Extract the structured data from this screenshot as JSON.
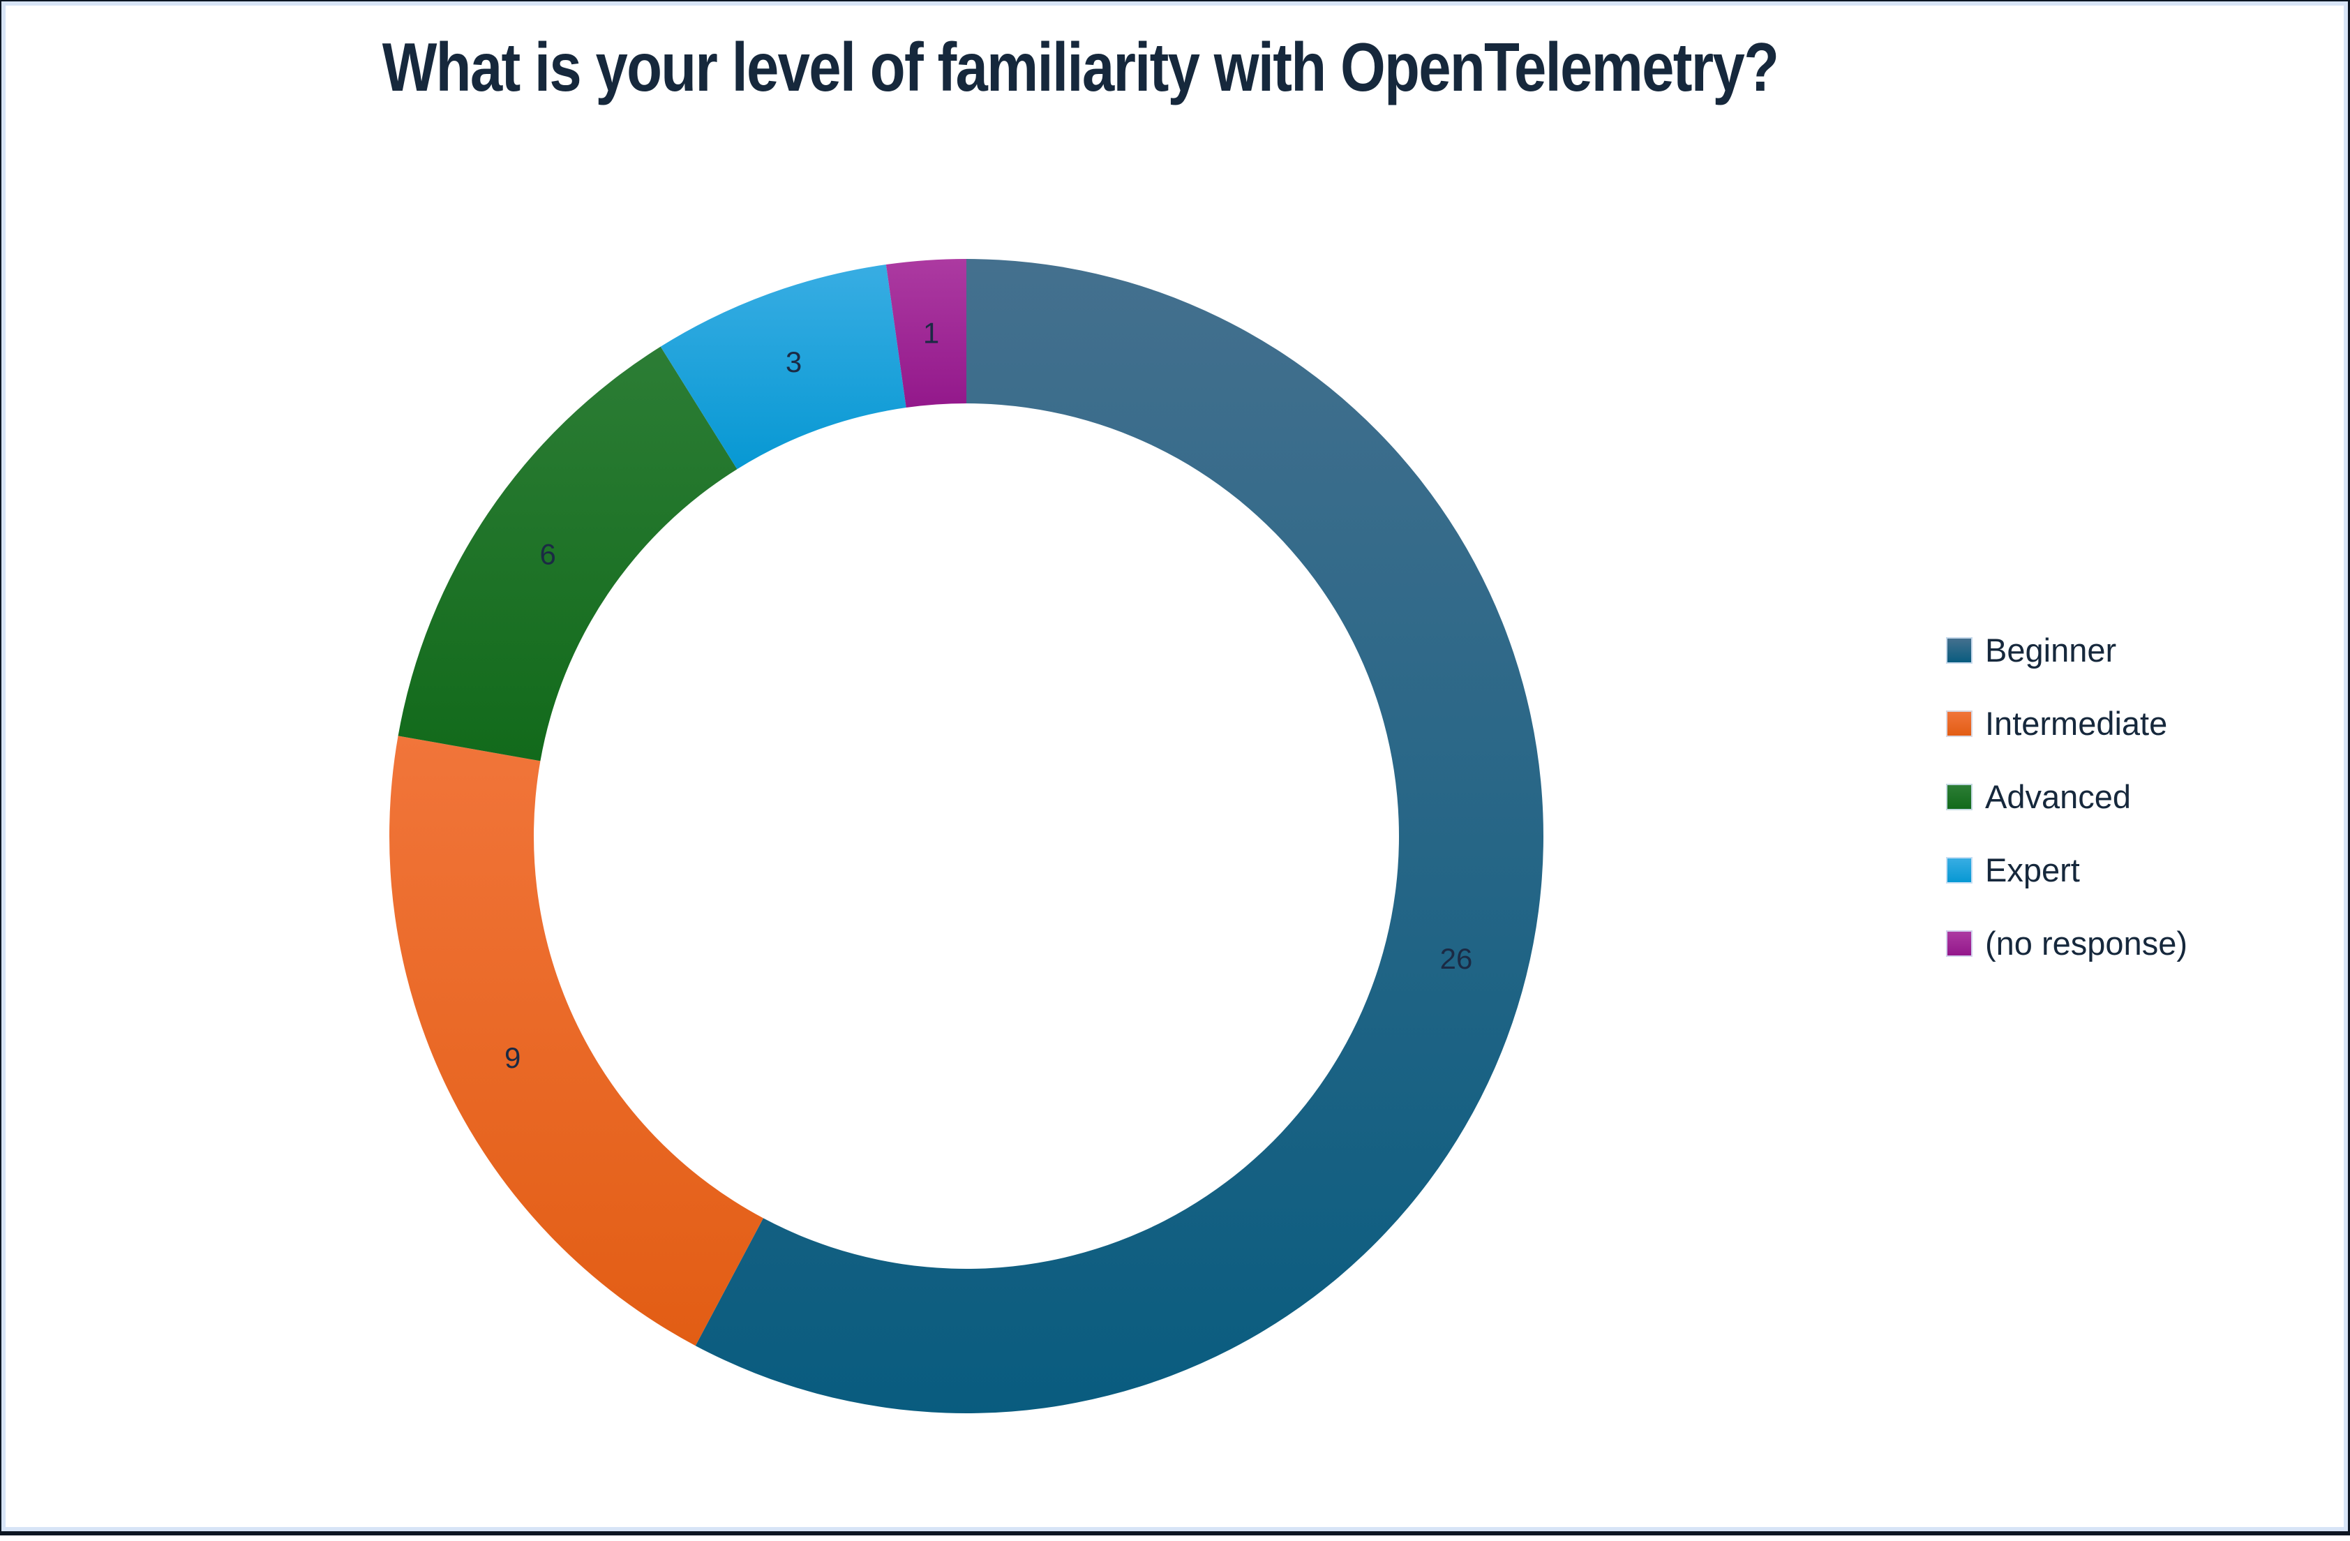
{
  "title": {
    "text": "What is your level of familiarity with OpenTelemetry?",
    "color": "#16283c"
  },
  "chart_data": {
    "type": "pie",
    "subtype": "donut",
    "title": "What is your level of familiarity with OpenTelemetry?",
    "categories": [
      "Beginner",
      "Intermediate",
      "Advanced",
      "Expert",
      "(no response)"
    ],
    "values": [
      26,
      9,
      6,
      3,
      1
    ],
    "total": 45,
    "data_labels": [
      "26",
      "9",
      "6",
      "3",
      "1"
    ],
    "label_color": "#1b2a44",
    "start_angle_deg": 0,
    "direction": "clockwise",
    "donut_hole_ratio": 0.75,
    "legend_position": "right",
    "series_colors": [
      {
        "name": "Beginner",
        "light": "#44708e",
        "dark": "#095c7f"
      },
      {
        "name": "Intermediate",
        "light": "#f1753a",
        "dark": "#e25d14"
      },
      {
        "name": "Advanced",
        "light": "#2c7d35",
        "dark": "#126a1b"
      },
      {
        "name": "Expert",
        "light": "#38ade3",
        "dark": "#0798d3"
      },
      {
        "name": "(no response)",
        "light": "#ac3aa1",
        "dark": "#93188b"
      }
    ]
  },
  "legend": {
    "text_color": "#16283c",
    "items": [
      {
        "label": "Beginner"
      },
      {
        "label": "Intermediate"
      },
      {
        "label": "Advanced"
      },
      {
        "label": "Expert"
      },
      {
        "label": "(no response)"
      }
    ]
  },
  "frame": {
    "background": "#ffffff",
    "inner_border_color": "#d7e4f6",
    "outer_border_color": "#0c1622"
  }
}
